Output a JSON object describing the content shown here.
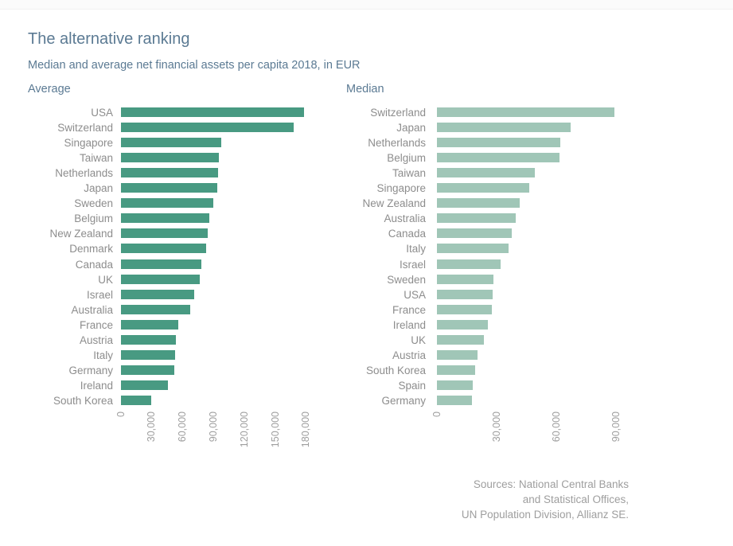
{
  "page": {
    "title": "The alternative ranking",
    "subtitle": "Median and average net financial assets per capita 2018, in EUR",
    "sources": {
      "lines": [
        "Sources: National Central Banks",
        "and Statistical Offices,",
        "UN Population Division, Allianz SE."
      ]
    }
  },
  "colors": {
    "heading": "#5b7a93",
    "category_label": "#8d8d8d",
    "tick_label": "#9e9e9e",
    "average_bar": "#489a82",
    "median_bar": "#a0c6b7"
  },
  "chart_data": [
    {
      "type": "bar",
      "orientation": "horizontal",
      "title": "Average",
      "categories": [
        "USA",
        "Switzerland",
        "Singapore",
        "Taiwan",
        "Netherlands",
        "Japan",
        "Sweden",
        "Belgium",
        "New Zealand",
        "Denmark",
        "Canada",
        "UK",
        "Israel",
        "Australia",
        "France",
        "Austria",
        "Italy",
        "Germany",
        "Ireland",
        "South Korea"
      ],
      "values": [
        178000,
        168000,
        97500,
        95000,
        94500,
        93500,
        89500,
        86000,
        84500,
        83000,
        78000,
        76500,
        71000,
        67000,
        55500,
        53000,
        52500,
        51500,
        46000,
        29000
      ],
      "xlabel": "",
      "ylabel": "",
      "xlim": [
        0,
        186000
      ],
      "xtick_values": [
        0,
        30000,
        60000,
        90000,
        120000,
        150000,
        180000
      ],
      "xtick_labels": [
        "0",
        "30,000",
        "60,000",
        "90,000",
        "120,000",
        "150,000",
        "180,000"
      ],
      "bar_color": "#489a82",
      "grid": false,
      "legend": null
    },
    {
      "type": "bar",
      "orientation": "horizontal",
      "title": "Median",
      "categories": [
        "Switzerland",
        "Japan",
        "Netherlands",
        "Belgium",
        "Taiwan",
        "Singapore",
        "New Zealand",
        "Australia",
        "Canada",
        "Italy",
        "Israel",
        "Sweden",
        "USA",
        "France",
        "Ireland",
        "UK",
        "Austria",
        "South Korea",
        "Spain",
        "Germany"
      ],
      "values": [
        89000,
        67000,
        62000,
        61500,
        49000,
        46500,
        41500,
        39500,
        37500,
        36000,
        32000,
        28500,
        28000,
        27500,
        25500,
        23500,
        20500,
        19000,
        18000,
        17500
      ],
      "xlabel": "",
      "ylabel": "",
      "xlim": [
        0,
        93000
      ],
      "xtick_values": [
        0,
        30000,
        60000,
        90000
      ],
      "xtick_labels": [
        "0",
        "30,000",
        "60,000",
        "90,000"
      ],
      "bar_color": "#a0c6b7",
      "grid": false,
      "legend": null
    }
  ]
}
